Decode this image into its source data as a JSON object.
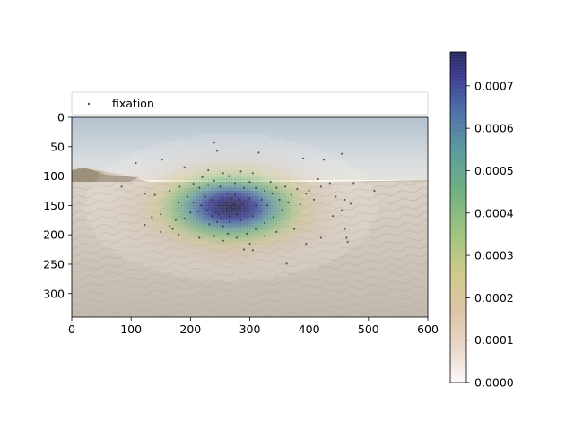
{
  "chart_data": {
    "type": "heatmap",
    "background": "desert sand dunes photograph under pale sky",
    "x_ticks": [
      0,
      100,
      200,
      300,
      400,
      500,
      600
    ],
    "y_ticks": [
      0,
      50,
      100,
      150,
      200,
      250,
      300
    ],
    "xlim": [
      0,
      600
    ],
    "ylim": [
      340,
      0
    ],
    "legend": {
      "label": "fixation",
      "placement": "top-left, above axes"
    },
    "colorbar": {
      "min": 0.0,
      "max": 0.00078,
      "ticks": [
        "0.0000",
        "0.0001",
        "0.0002",
        "0.0003",
        "0.0004",
        "0.0005",
        "0.0006",
        "0.0007"
      ],
      "tick_values": [
        0,
        0.0001,
        0.0002,
        0.0003,
        0.0004,
        0.0005,
        0.0006,
        0.0007
      ],
      "colormap": "gist_earth_r (white - tan - yellow-green - green - teal - blue - navy)"
    },
    "density": {
      "center_x": 268,
      "center_y": 153,
      "sigma_x": 85,
      "sigma_y": 43,
      "peak": 0.00078
    },
    "fixations": [
      [
        240,
        43
      ],
      [
        245,
        57
      ],
      [
        315,
        60
      ],
      [
        152,
        72
      ],
      [
        108,
        78
      ],
      [
        390,
        70
      ],
      [
        425,
        72
      ],
      [
        455,
        62
      ],
      [
        190,
        85
      ],
      [
        230,
        90
      ],
      [
        255,
        95
      ],
      [
        285,
        92
      ],
      [
        305,
        95
      ],
      [
        265,
        100
      ],
      [
        220,
        102
      ],
      [
        240,
        108
      ],
      [
        300,
        110
      ],
      [
        335,
        110
      ],
      [
        84,
        118
      ],
      [
        123,
        130
      ],
      [
        140,
        132
      ],
      [
        165,
        125
      ],
      [
        182,
        118
      ],
      [
        205,
        113
      ],
      [
        215,
        120
      ],
      [
        230,
        115
      ],
      [
        250,
        118
      ],
      [
        275,
        112
      ],
      [
        290,
        120
      ],
      [
        310,
        120
      ],
      [
        325,
        125
      ],
      [
        345,
        120
      ],
      [
        360,
        118
      ],
      [
        380,
        122
      ],
      [
        400,
        125
      ],
      [
        420,
        118
      ],
      [
        415,
        105
      ],
      [
        435,
        112
      ],
      [
        475,
        112
      ],
      [
        510,
        125
      ],
      [
        445,
        135
      ],
      [
        460,
        140
      ],
      [
        470,
        147
      ],
      [
        455,
        158
      ],
      [
        440,
        168
      ],
      [
        395,
        130
      ],
      [
        408,
        140
      ],
      [
        385,
        148
      ],
      [
        365,
        145
      ],
      [
        350,
        140
      ],
      [
        370,
        132
      ],
      [
        338,
        130
      ],
      [
        355,
        158
      ],
      [
        340,
        170
      ],
      [
        325,
        180
      ],
      [
        310,
        190
      ],
      [
        295,
        198
      ],
      [
        285,
        175
      ],
      [
        280,
        155
      ],
      [
        272,
        148
      ],
      [
        268,
        152
      ],
      [
        262,
        158
      ],
      [
        258,
        145
      ],
      [
        254,
        138
      ],
      [
        248,
        150
      ],
      [
        243,
        162
      ],
      [
        236,
        168
      ],
      [
        228,
        158
      ],
      [
        218,
        150
      ],
      [
        205,
        145
      ],
      [
        200,
        162
      ],
      [
        190,
        172
      ],
      [
        175,
        175
      ],
      [
        165,
        185
      ],
      [
        150,
        165
      ],
      [
        135,
        170
      ],
      [
        123,
        183
      ],
      [
        150,
        195
      ],
      [
        170,
        190
      ],
      [
        180,
        200
      ],
      [
        215,
        205
      ],
      [
        240,
        202
      ],
      [
        255,
        210
      ],
      [
        263,
        198
      ],
      [
        278,
        205
      ],
      [
        300,
        215
      ],
      [
        325,
        202
      ],
      [
        345,
        195
      ],
      [
        375,
        190
      ],
      [
        395,
        215
      ],
      [
        420,
        205
      ],
      [
        460,
        190
      ],
      [
        463,
        205
      ],
      [
        465,
        212
      ],
      [
        290,
        225
      ],
      [
        305,
        226
      ],
      [
        362,
        249
      ],
      [
        270,
        138
      ],
      [
        262,
        130
      ],
      [
        275,
        132
      ],
      [
        283,
        140
      ],
      [
        288,
        148
      ],
      [
        292,
        160
      ],
      [
        278,
        165
      ],
      [
        265,
        168
      ],
      [
        252,
        172
      ],
      [
        245,
        178
      ],
      [
        232,
        182
      ],
      [
        255,
        185
      ],
      [
        266,
        178
      ],
      [
        270,
        160
      ],
      [
        275,
        150
      ],
      [
        261,
        150
      ],
      [
        256,
        160
      ],
      [
        273,
        156
      ],
      [
        282,
        152
      ],
      [
        248,
        165
      ],
      [
        235,
        140
      ],
      [
        225,
        135
      ],
      [
        213,
        160
      ],
      [
        300,
        138
      ],
      [
        310,
        150
      ],
      [
        318,
        160
      ],
      [
        305,
        168
      ],
      [
        330,
        150
      ],
      [
        320,
        140
      ],
      [
        195,
        135
      ],
      [
        180,
        145
      ]
    ]
  }
}
